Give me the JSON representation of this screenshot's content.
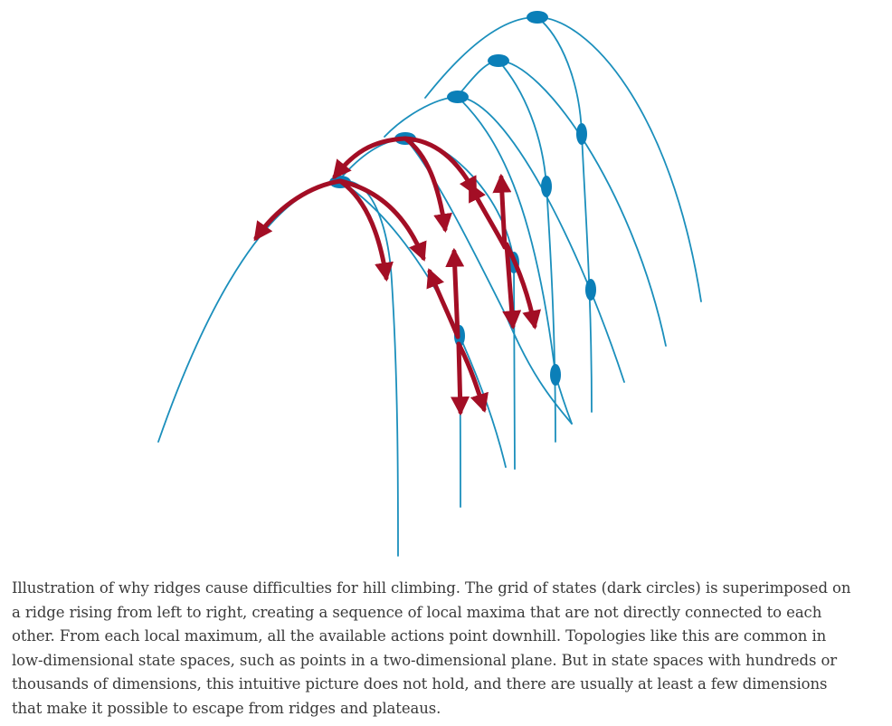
{
  "colors": {
    "ridge_line": "#1b8fbc",
    "state_marker": "#0b7fb8",
    "action_arrow": "#a30e25",
    "caption_text": "#3a3a3a",
    "background": "#ffffff"
  },
  "caption": "Illustration of why ridges cause difficulties for hill climbing. The grid of states (dark circles) is superimposed on a ridge rising from left to right, creating a sequence of local maxima that are not directly connected to each other. From each local maximum, all the available actions point downhill. Topologies like this are common in low-dimensional state spaces, such as points in a two-dimensional plane. But in state spaces with hundreds or thousands of dimensions, this intuitive picture does not hold, and there are usually at least a few dimensions that make it possible to escape from ridges and plateaus."
}
